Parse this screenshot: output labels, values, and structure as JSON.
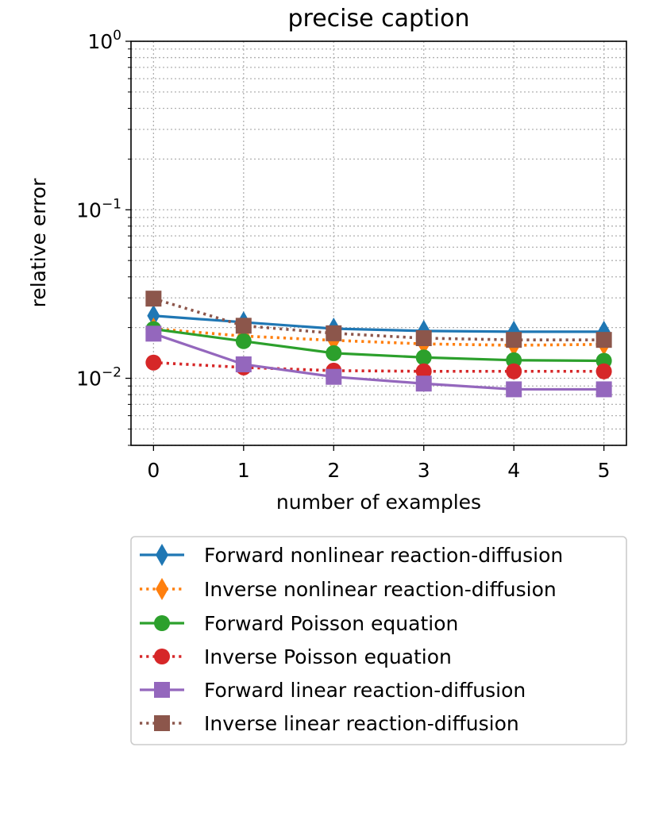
{
  "chart_data": {
    "type": "line",
    "title": "precise caption",
    "xlabel": "number of examples",
    "ylabel": "relative error",
    "yscale": "log",
    "ylim": [
      0.004,
      1.0
    ],
    "xlim": [
      -0.25,
      5.25
    ],
    "x": [
      0,
      1,
      2,
      3,
      4,
      5
    ],
    "xticks": [
      0,
      1,
      2,
      3,
      4,
      5
    ],
    "yticks": [
      {
        "value": 1.0,
        "base": "10",
        "exp": "0"
      },
      {
        "value": 0.1,
        "base": "10",
        "exp": "−1"
      },
      {
        "value": 0.01,
        "base": "10",
        "exp": "−2"
      }
    ],
    "grid": true,
    "legend_position": "below-plot",
    "series": [
      {
        "name": "Forward nonlinear reaction-diffusion",
        "color": "#1f77b4",
        "marker": "thin_diamond",
        "linestyle": "solid",
        "values": [
          0.0235,
          0.0215,
          0.0197,
          0.0191,
          0.0189,
          0.0189
        ]
      },
      {
        "name": "Inverse nonlinear reaction-diffusion",
        "color": "#ff7f0e",
        "marker": "thin_diamond",
        "linestyle": "dotted",
        "values": [
          0.0197,
          0.0178,
          0.0168,
          0.016,
          0.0157,
          0.0159
        ]
      },
      {
        "name": "Forward Poisson equation",
        "color": "#2ca02c",
        "marker": "circle",
        "linestyle": "solid",
        "values": [
          0.0196,
          0.0166,
          0.0141,
          0.0133,
          0.0128,
          0.0127
        ]
      },
      {
        "name": "Inverse Poisson equation",
        "color": "#d62728",
        "marker": "circle",
        "linestyle": "dotted",
        "values": [
          0.0124,
          0.0116,
          0.0111,
          0.011,
          0.011,
          0.011
        ]
      },
      {
        "name": "Forward linear reaction-diffusion",
        "color": "#9467bd",
        "marker": "square",
        "linestyle": "solid",
        "values": [
          0.0184,
          0.0121,
          0.0102,
          0.0093,
          0.0086,
          0.0086
        ]
      },
      {
        "name": "Inverse linear reaction-diffusion",
        "color": "#8c564b",
        "marker": "square",
        "linestyle": "dotted",
        "values": [
          0.0297,
          0.0205,
          0.0185,
          0.0173,
          0.0169,
          0.0169
        ]
      }
    ]
  }
}
